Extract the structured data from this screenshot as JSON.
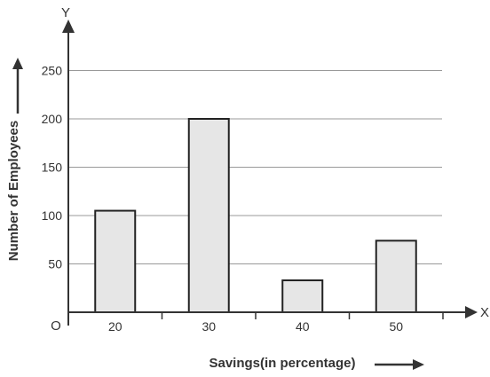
{
  "chart_data": {
    "type": "bar",
    "categories": [
      "20",
      "30",
      "40",
      "50"
    ],
    "values": [
      105,
      200,
      33,
      74
    ],
    "title": "",
    "xlabel": "Savings(in percentage)",
    "ylabel": "Number of Employees",
    "ylim": [
      0,
      280
    ],
    "yticks": [
      "50",
      "100",
      "150",
      "200",
      "250"
    ],
    "x_axis_letter": "X",
    "y_axis_letter": "Y",
    "origin_label": "O",
    "grid": true,
    "colors": {
      "bar_fill": "#e6e6e6",
      "bar_stroke": "#222222",
      "grid": "#999999",
      "axis": "#333333"
    }
  }
}
